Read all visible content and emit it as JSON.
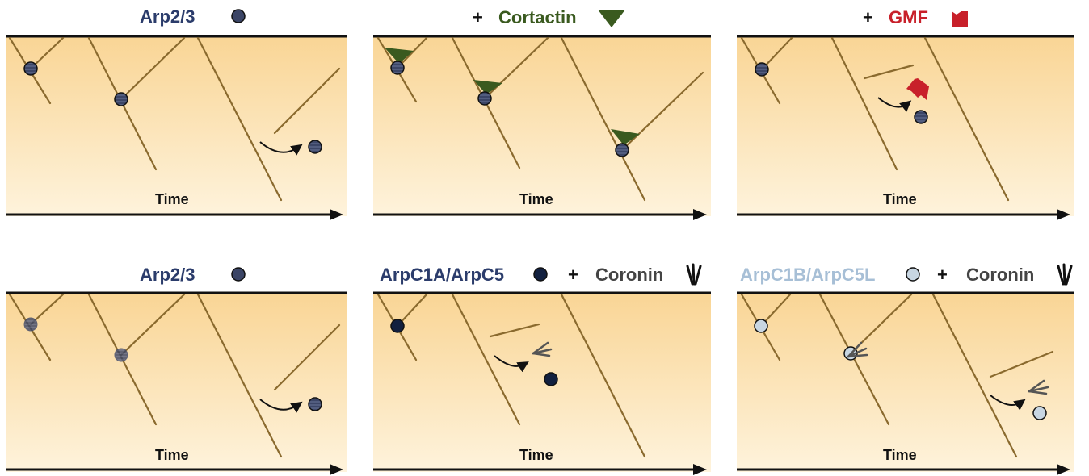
{
  "colors": {
    "panel_top": "#f9d595",
    "panel_bottom": "#fef3dc",
    "filament": "#8a6a2e",
    "arp23": "#3b4566",
    "arpc1a": "#12203f",
    "arpc1b": "#c8d6e2",
    "cortactin": "#3a5a1f",
    "gmf": "#c8202a",
    "coronin": "#555555",
    "title_arp": "#2b3c6b",
    "title_cortactin": "#3a5a1f",
    "title_gmf": "#c8202a",
    "title_arpc1b": "#a7bfd6",
    "title_coronin": "#444444",
    "black": "#111111"
  },
  "panels": [
    {
      "id": "arp23-top",
      "title": [
        {
          "text": "Arp2/3",
          "color": "title_arp"
        },
        {
          "glyph": "circle",
          "fill": "arp23"
        }
      ],
      "time_label": "Time"
    },
    {
      "id": "cortactin",
      "title": [
        {
          "text": "+",
          "color": "black"
        },
        {
          "text": "Cortactin",
          "color": "title_cortactin"
        },
        {
          "glyph": "triangle",
          "fill": "cortactin"
        }
      ],
      "time_label": "Time"
    },
    {
      "id": "gmf",
      "title": [
        {
          "text": "+",
          "color": "black"
        },
        {
          "text": "GMF",
          "color": "title_gmf"
        },
        {
          "glyph": "gmf",
          "fill": "gmf"
        }
      ],
      "time_label": "Time"
    },
    {
      "id": "arp23-bottom",
      "title": [
        {
          "text": "Arp2/3",
          "color": "title_arp"
        },
        {
          "glyph": "circle",
          "fill": "arp23"
        }
      ],
      "time_label": "Time"
    },
    {
      "id": "arpc1a-coronin",
      "title": [
        {
          "text": "ArpC1A/ArpC5",
          "color": "title_arp"
        },
        {
          "glyph": "circle",
          "fill": "arpc1a"
        },
        {
          "text": "+",
          "color": "black"
        },
        {
          "text": "Coronin",
          "color": "title_coronin"
        },
        {
          "glyph": "coronin",
          "fill": "black"
        }
      ],
      "time_label": "Time"
    },
    {
      "id": "arpc1b-coronin",
      "title": [
        {
          "text": "ArpC1B/ArpC5L",
          "color": "title_arpc1b"
        },
        {
          "glyph": "circle",
          "fill": "arpc1b"
        },
        {
          "text": "+",
          "color": "black"
        },
        {
          "text": "Coronin",
          "color": "title_coronin"
        },
        {
          "glyph": "coronin",
          "fill": "black"
        }
      ],
      "time_label": "Time"
    }
  ]
}
